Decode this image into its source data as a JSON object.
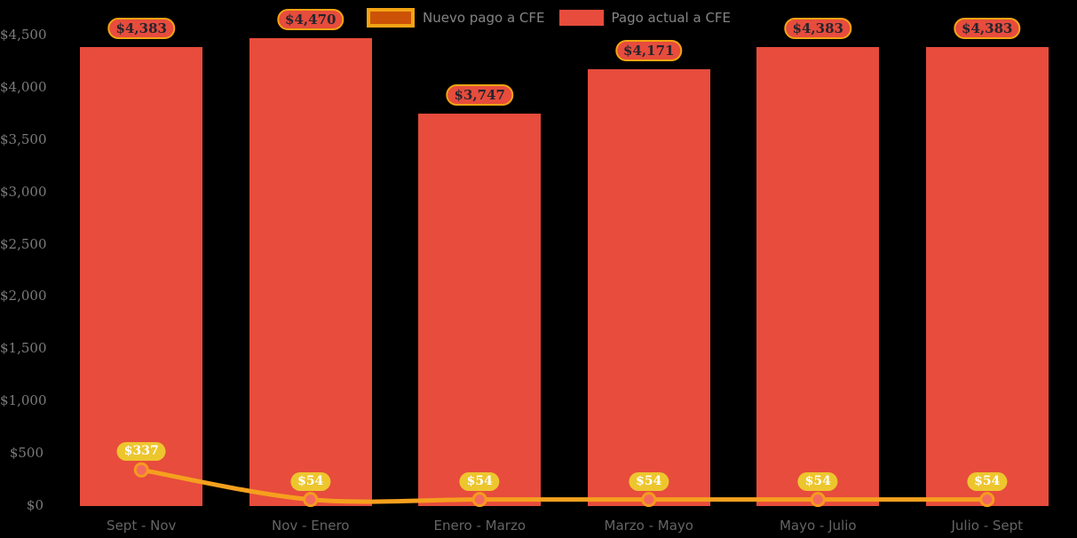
{
  "chart_data": {
    "type": "bar",
    "categories": [
      "Sept - Nov",
      "Nov - Enero",
      "Enero - Marzo",
      "Marzo - Mayo",
      "Mayo - Julio",
      "Julio - Sept"
    ],
    "series": [
      {
        "name": "Nuevo pago a CFE",
        "type": "line",
        "values": [
          337,
          54,
          54,
          54,
          54,
          54
        ],
        "labels": [
          "$337",
          "$54",
          "$54",
          "$54",
          "$54",
          "$54"
        ]
      },
      {
        "name": "Pago actual a CFE",
        "type": "bar",
        "values": [
          4383,
          4470,
          3747,
          4171,
          4383,
          4383
        ],
        "labels": [
          "$4,383",
          "$4,470",
          "$3,747",
          "$4,171",
          "$4,383",
          "$4,383"
        ]
      }
    ],
    "title": "",
    "xlabel": "",
    "ylabel": "",
    "ylim": [
      0,
      4500
    ],
    "ytick_step": 500,
    "ytick_labels": [
      "$0",
      "$500",
      "$1,000",
      "$1,500",
      "$2,000",
      "$2,500",
      "$3,000",
      "$3,500",
      "$4,000",
      "$4,500"
    ],
    "grid": false,
    "legend_position": "top-center"
  },
  "colors": {
    "background": "#000000",
    "bar": "#E74C3C",
    "line": "#F5A01E",
    "marker_fill": "#F4695E",
    "marker_stroke": "#F59B1E",
    "bar_label_bg": "#E74C3C",
    "bar_label_border": "#F2A413",
    "bar_label_text": "#25252E",
    "line_label_bg": "#EDC62E",
    "line_label_text": "#FFFFFF",
    "legend_line_swatch_fill": "#CC5207",
    "legend_line_swatch_border": "#F2A413",
    "legend_bar_swatch_fill": "#E74C3C",
    "legend_text": "#848484",
    "ytick_text": "#7B7B7B",
    "xtick_text": "#646464"
  }
}
